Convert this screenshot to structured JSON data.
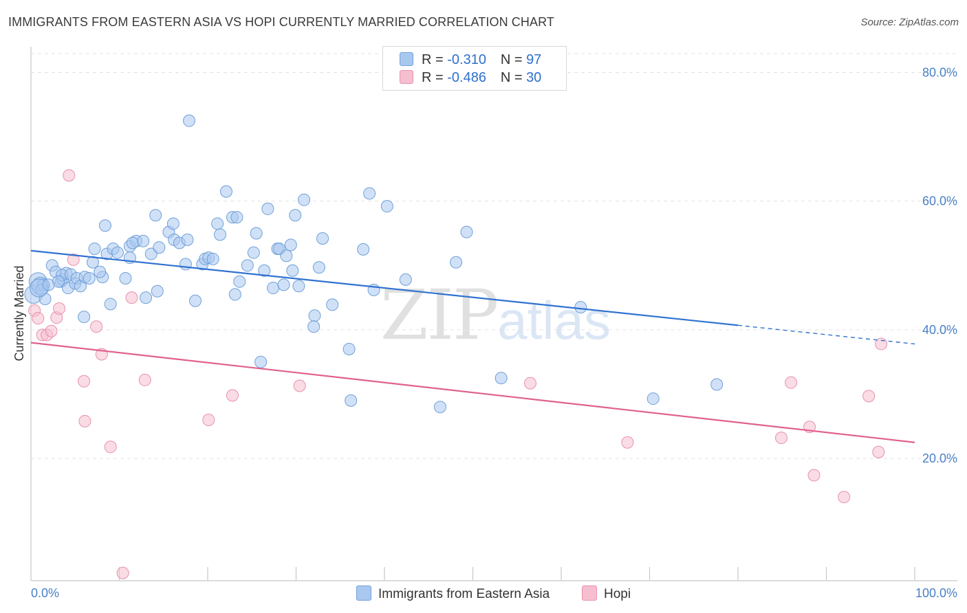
{
  "title": "IMMIGRANTS FROM EASTERN ASIA VS HOPI CURRENTLY MARRIED CORRELATION CHART",
  "source": "Source: ZipAtlas.com",
  "watermark": {
    "zip": "ZIP",
    "atlas": "atlas"
  },
  "legend": {
    "rows": [
      {
        "r_label": "R =",
        "r_value": "-0.310",
        "n_label": "N =",
        "n_value": "97"
      },
      {
        "r_label": "R =",
        "r_value": "-0.486",
        "n_label": "N =",
        "n_value": "30"
      }
    ]
  },
  "bottom_legend": [
    "Immigrants from Eastern Asia",
    "Hopi"
  ],
  "colors": {
    "blue_fill": "#a9c8f0",
    "blue_stroke": "#6f9fd8",
    "blue_line": "#2f72d0",
    "pink_fill": "#f6bfd0",
    "pink_stroke": "#e890ad",
    "pink_line": "#e0608e",
    "tick_text": "#4a80c8",
    "grid": "#e2e2e2"
  },
  "chart_data": {
    "type": "scatter",
    "title": "IMMIGRANTS FROM EASTERN ASIA VS HOPI CURRENTLY MARRIED CORRELATION CHART",
    "xlabel": "",
    "ylabel": "Currently Married",
    "xlim": [
      0,
      100
    ],
    "ylim": [
      1,
      84
    ],
    "x_tick_labels": [
      "0.0%",
      "100.0%"
    ],
    "y_ticks": [
      20,
      40,
      60,
      80
    ],
    "y_tick_labels": [
      "20.0%",
      "40.0%",
      "60.0%",
      "80.0%"
    ],
    "series": [
      {
        "name": "Immigrants from Eastern Asia",
        "color": "blue",
        "trend": {
          "x0": 0,
          "y0": 52.3,
          "x1": 80,
          "y1": 40.7,
          "dash_to": 100
        },
        "points": [
          [
            0.3,
            45.5
          ],
          [
            0.8,
            47.5
          ],
          [
            1.1,
            46.8
          ],
          [
            1.4,
            47.0
          ],
          [
            1.2,
            46.2
          ],
          [
            1.6,
            44.8
          ],
          [
            2.4,
            50.0
          ],
          [
            2.8,
            49.0
          ],
          [
            3.4,
            47.5
          ],
          [
            3.6,
            47.8
          ],
          [
            4.0,
            48.8
          ],
          [
            4.2,
            46.5
          ],
          [
            3.5,
            48.5
          ],
          [
            4.5,
            48.6
          ],
          [
            5.0,
            47.2
          ],
          [
            5.2,
            48.0
          ],
          [
            5.6,
            46.8
          ],
          [
            6.1,
            48.2
          ],
          [
            6.6,
            48.0
          ],
          [
            7.2,
            52.6
          ],
          [
            7.0,
            50.5
          ],
          [
            8.1,
            48.2
          ],
          [
            8.4,
            56.2
          ],
          [
            8.6,
            51.8
          ],
          [
            9.3,
            52.6
          ],
          [
            9.8,
            52.0
          ],
          [
            10.7,
            48.0
          ],
          [
            11.2,
            53.0
          ],
          [
            11.9,
            53.8
          ],
          [
            11.5,
            53.5
          ],
          [
            11.2,
            51.2
          ],
          [
            12.7,
            53.8
          ],
          [
            13.6,
            51.8
          ],
          [
            14.3,
            46.0
          ],
          [
            14.1,
            57.8
          ],
          [
            14.5,
            52.8
          ],
          [
            15.6,
            55.2
          ],
          [
            16.1,
            56.5
          ],
          [
            16.2,
            54.0
          ],
          [
            16.8,
            53.5
          ],
          [
            17.5,
            50.2
          ],
          [
            17.7,
            54.0
          ],
          [
            18.6,
            44.5
          ],
          [
            19.4,
            50.2
          ],
          [
            19.7,
            51.0
          ],
          [
            20.1,
            51.2
          ],
          [
            20.6,
            51.0
          ],
          [
            21.1,
            56.5
          ],
          [
            21.4,
            54.8
          ],
          [
            22.1,
            61.5
          ],
          [
            22.8,
            57.5
          ],
          [
            23.3,
            57.5
          ],
          [
            23.1,
            45.5
          ],
          [
            23.6,
            47.5
          ],
          [
            24.5,
            50.0
          ],
          [
            25.2,
            52.0
          ],
          [
            25.5,
            55.0
          ],
          [
            26.0,
            35.0
          ],
          [
            26.4,
            49.2
          ],
          [
            26.8,
            58.8
          ],
          [
            27.4,
            46.5
          ],
          [
            27.9,
            52.6
          ],
          [
            28.1,
            52.6
          ],
          [
            28.6,
            47.0
          ],
          [
            28.9,
            51.5
          ],
          [
            29.4,
            53.2
          ],
          [
            29.6,
            49.2
          ],
          [
            29.9,
            57.8
          ],
          [
            30.3,
            46.8
          ],
          [
            30.9,
            60.2
          ],
          [
            32.1,
            42.2
          ],
          [
            32.0,
            40.5
          ],
          [
            32.6,
            49.7
          ],
          [
            33.0,
            54.2
          ],
          [
            34.1,
            43.9
          ],
          [
            36.0,
            37.0
          ],
          [
            36.2,
            29.0
          ],
          [
            37.6,
            52.5
          ],
          [
            38.3,
            61.2
          ],
          [
            38.8,
            46.2
          ],
          [
            40.3,
            59.2
          ],
          [
            42.4,
            47.8
          ],
          [
            46.3,
            28.0
          ],
          [
            48.1,
            50.5
          ],
          [
            49.3,
            55.2
          ],
          [
            53.2,
            32.5
          ],
          [
            62.2,
            43.5
          ],
          [
            70.4,
            29.3
          ],
          [
            77.6,
            31.5
          ],
          [
            0.9,
            46.5
          ],
          [
            3.1,
            47.5
          ],
          [
            7.8,
            49.0
          ],
          [
            13.0,
            45.0
          ],
          [
            17.9,
            72.5
          ],
          [
            2.0,
            47.0
          ],
          [
            9.0,
            44.0
          ],
          [
            6.0,
            42.0
          ]
        ]
      },
      {
        "name": "Hopi",
        "color": "pink",
        "trend": {
          "x0": 0,
          "y0": 38.0,
          "x1": 100,
          "y1": 22.5
        },
        "points": [
          [
            0.4,
            43.0
          ],
          [
            0.8,
            41.8
          ],
          [
            1.3,
            39.2
          ],
          [
            1.8,
            39.2
          ],
          [
            2.3,
            39.8
          ],
          [
            2.9,
            41.9
          ],
          [
            3.2,
            43.3
          ],
          [
            4.3,
            64.0
          ],
          [
            4.8,
            50.9
          ],
          [
            6.0,
            32.0
          ],
          [
            6.1,
            25.8
          ],
          [
            7.4,
            40.5
          ],
          [
            8.0,
            36.2
          ],
          [
            9.0,
            21.8
          ],
          [
            10.4,
            2.2
          ],
          [
            11.4,
            45.0
          ],
          [
            12.9,
            32.2
          ],
          [
            20.1,
            26.0
          ],
          [
            22.8,
            29.8
          ],
          [
            30.4,
            31.3
          ],
          [
            56.5,
            31.7
          ],
          [
            67.5,
            22.5
          ],
          [
            84.9,
            23.2
          ],
          [
            86.0,
            31.8
          ],
          [
            88.1,
            24.9
          ],
          [
            88.6,
            17.4
          ],
          [
            92.0,
            14.0
          ],
          [
            94.8,
            29.7
          ],
          [
            95.9,
            21.0
          ],
          [
            96.2,
            37.8
          ]
        ]
      }
    ]
  }
}
